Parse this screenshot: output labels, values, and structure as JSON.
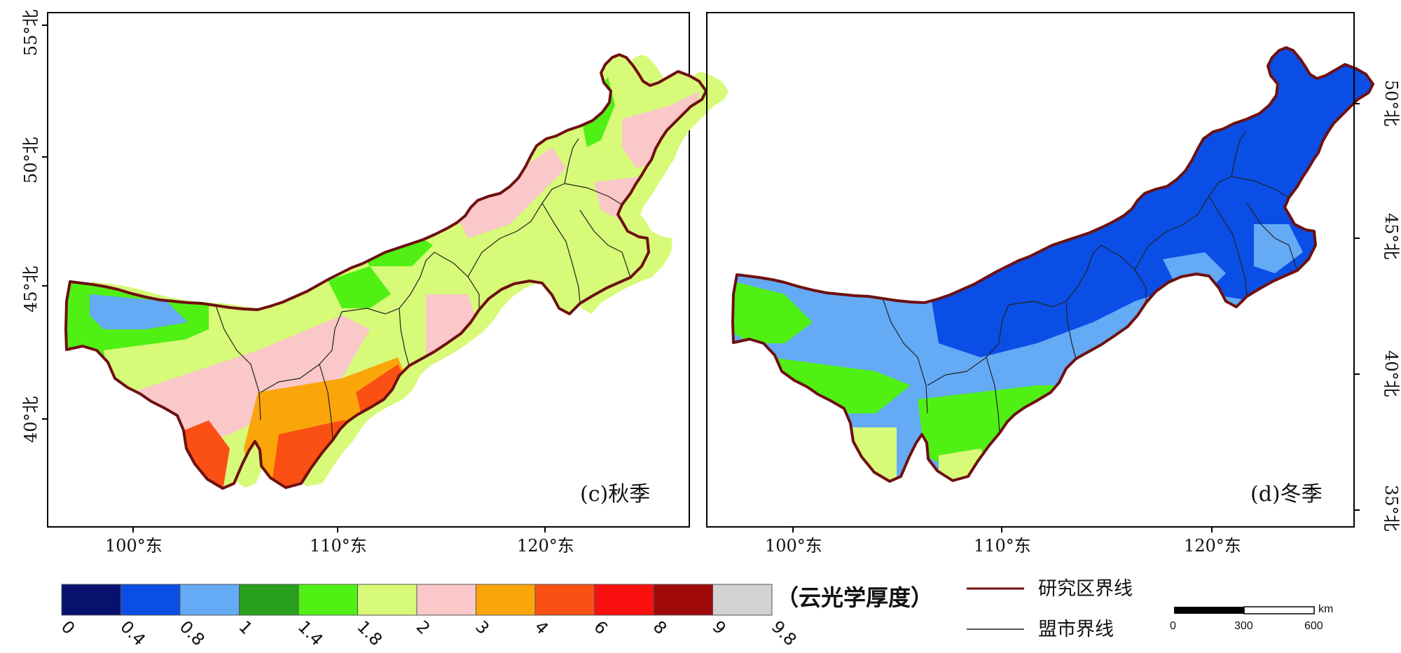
{
  "panels": [
    {
      "id": "c",
      "label": "(c)秋季",
      "x_ticks": [
        "100°东",
        "110°东",
        "120°东"
      ],
      "y_ticks": [
        "55°北",
        "50°北",
        "45°北",
        "40°北"
      ],
      "y_tick_side": "left"
    },
    {
      "id": "d",
      "label": "(d)冬季",
      "x_ticks": [
        "100°东",
        "110°东",
        "120°东"
      ],
      "y_ticks": [
        "50°北",
        "45°北",
        "40°北",
        "35°北"
      ],
      "y_tick_side": "right"
    }
  ],
  "colorbar": {
    "title": "（云光学厚度）",
    "bins": [
      {
        "from": "0",
        "to": "0.4",
        "color": "#08126e"
      },
      {
        "from": "0.4",
        "to": "0.8",
        "color": "#0a4ee6"
      },
      {
        "from": "0.8",
        "to": "1",
        "color": "#64aaf5"
      },
      {
        "from": "1",
        "to": "1.4",
        "color": "#28a01e"
      },
      {
        "from": "1.4",
        "to": "1.8",
        "color": "#50f014"
      },
      {
        "from": "1.8",
        "to": "2",
        "color": "#d7fa78"
      },
      {
        "from": "2",
        "to": "3",
        "color": "#fac8c8"
      },
      {
        "from": "3",
        "to": "4",
        "color": "#faa50a"
      },
      {
        "from": "4",
        "to": "6",
        "color": "#fa5014"
      },
      {
        "from": "6",
        "to": "8",
        "color": "#fa0f0f"
      },
      {
        "from": "8",
        "to": "9",
        "color": "#a00a0a"
      },
      {
        "from": "9",
        "to": "9.8",
        "color": "#d2d2d2"
      }
    ],
    "tick_labels": [
      "0",
      "0.4",
      "0.8",
      "1",
      "1.4",
      "1.8",
      "2",
      "3",
      "4",
      "6",
      "8",
      "9",
      "9.8"
    ]
  },
  "legend": {
    "items": [
      {
        "label": "研究区界线",
        "color": "#6e1010"
      },
      {
        "label": "盟市界线",
        "color": "#222222"
      }
    ]
  },
  "scalebar": {
    "unit": "km",
    "labels": [
      "0",
      "300",
      "600"
    ]
  },
  "map_layers": {
    "autumn_zones": [
      {
        "band": "1.4-1.8",
        "color": "#50f014"
      },
      {
        "band": "0.8-1",
        "color": "#64aaf5"
      },
      {
        "band": "1.8-2",
        "color": "#d7fa78"
      },
      {
        "band": "2-3",
        "color": "#fac8c8"
      },
      {
        "band": "3-4",
        "color": "#faa50a"
      },
      {
        "band": "4-6",
        "color": "#fa5014"
      }
    ],
    "winter_zones": [
      {
        "band": "0.4-0.8",
        "color": "#0a4ee6"
      },
      {
        "band": "0.8-1",
        "color": "#64aaf5"
      },
      {
        "band": "1.4-1.8",
        "color": "#50f014"
      },
      {
        "band": "1.8-2",
        "color": "#d7fa78"
      }
    ],
    "boundary_color": "#6e1010",
    "league_line_color": "#222222"
  }
}
